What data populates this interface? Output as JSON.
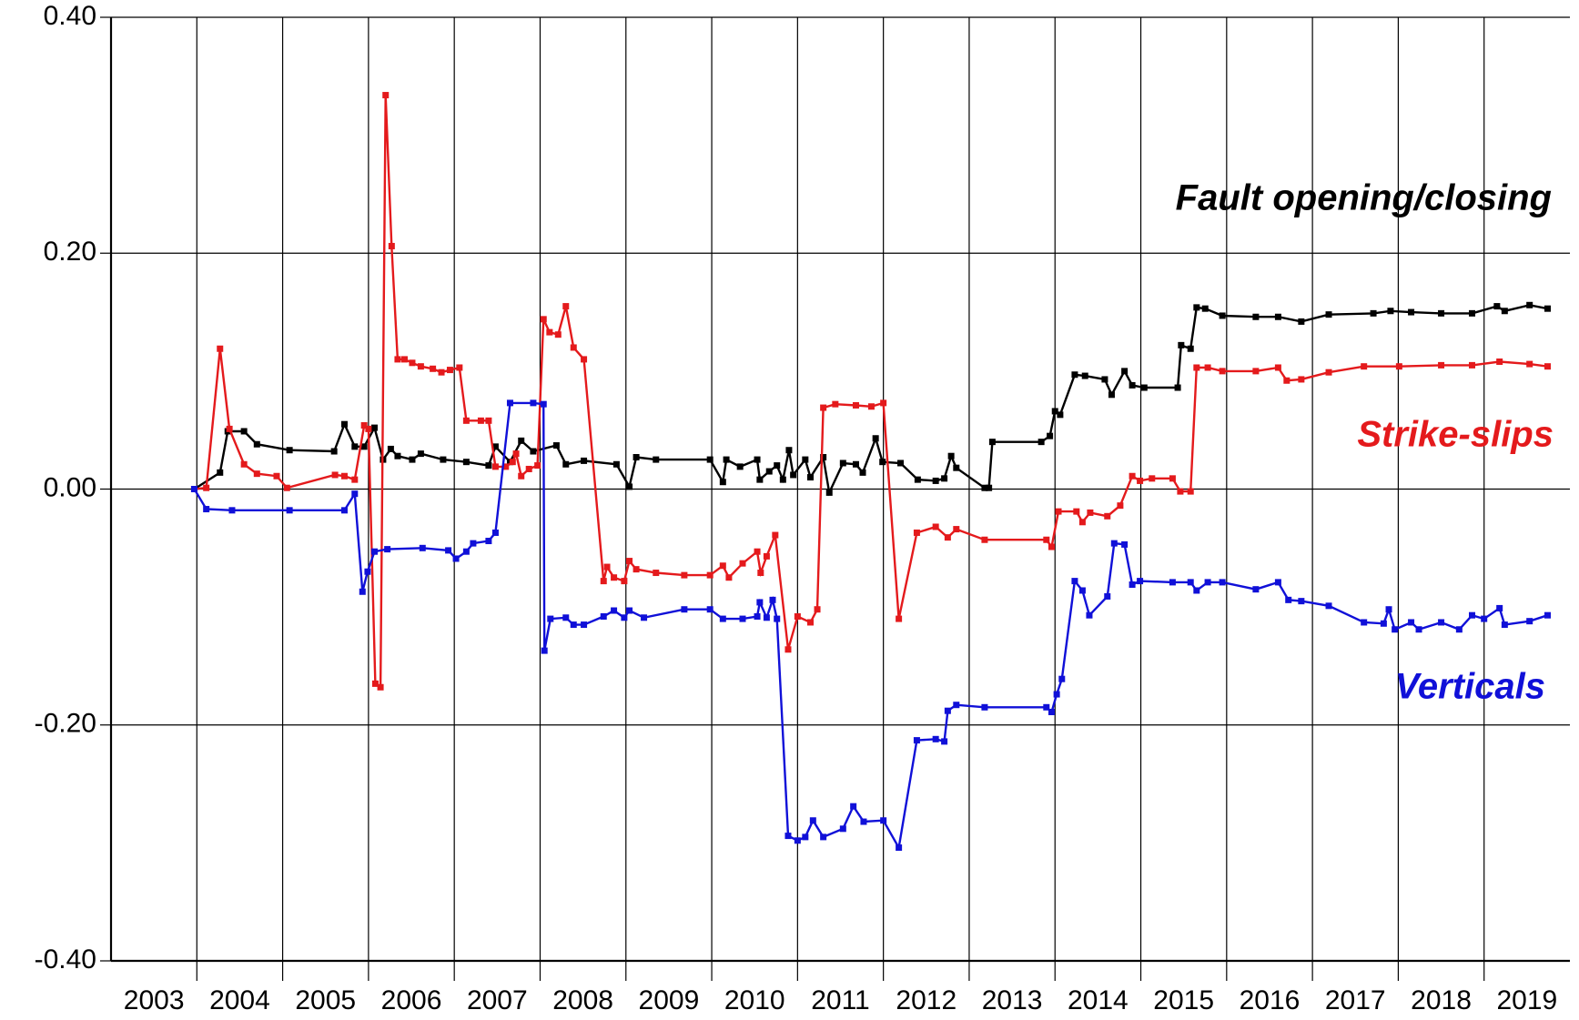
{
  "chart_data": {
    "type": "line",
    "xlim": [
      2003,
      2020
    ],
    "xgrid": [
      2004,
      2005,
      2006,
      2007,
      2008,
      2009,
      2010,
      2011,
      2012,
      2013,
      2014,
      2015,
      2016,
      2017,
      2018,
      2019
    ],
    "xticks": [
      {
        "value": 2003.5,
        "label": "2003"
      },
      {
        "value": 2004.5,
        "label": "2004"
      },
      {
        "value": 2005.5,
        "label": "2005"
      },
      {
        "value": 2006.5,
        "label": "2006"
      },
      {
        "value": 2007.5,
        "label": "2007"
      },
      {
        "value": 2008.5,
        "label": "2008"
      },
      {
        "value": 2009.5,
        "label": "2009"
      },
      {
        "value": 2010.5,
        "label": "2010"
      },
      {
        "value": 2011.5,
        "label": "2011"
      },
      {
        "value": 2012.5,
        "label": "2012"
      },
      {
        "value": 2013.5,
        "label": "2013"
      },
      {
        "value": 2014.5,
        "label": "2014"
      },
      {
        "value": 2015.5,
        "label": "2015"
      },
      {
        "value": 2016.5,
        "label": "2016"
      },
      {
        "value": 2017.5,
        "label": "2017"
      },
      {
        "value": 2018.5,
        "label": "2018"
      },
      {
        "value": 2019.5,
        "label": "2019"
      }
    ],
    "ylim": [
      -0.4,
      0.4
    ],
    "yticks": [
      {
        "value": -0.4,
        "label": "-0.40"
      },
      {
        "value": -0.2,
        "label": "-0.20"
      },
      {
        "value": 0,
        "label": "0.00"
      },
      {
        "value": 0.2,
        "label": "0.20"
      },
      {
        "value": 0.4,
        "label": "0.40"
      }
    ],
    "grid": true,
    "series": [
      {
        "name": "Fault opening/closing",
        "color": "#000000",
        "x": [
          2003.97,
          2004.27,
          2004.36,
          2004.55,
          2004.7,
          2005.08,
          2005.6,
          2005.72,
          2005.84,
          2005.95,
          2006.07,
          2006.17,
          2006.26,
          2006.34,
          2006.51,
          2006.61,
          2006.87,
          2007.14,
          2007.4,
          2007.48,
          2007.65,
          2007.78,
          2007.92,
          2008.19,
          2008.3,
          2008.51,
          2008.89,
          2009.04,
          2009.12,
          2009.35,
          2009.98,
          2010.13,
          2010.17,
          2010.33,
          2010.53,
          2010.56,
          2010.67,
          2010.76,
          2010.83,
          2010.9,
          2010.95,
          2011.09,
          2011.15,
          2011.3,
          2011.37,
          2011.53,
          2011.68,
          2011.76,
          2011.91,
          2011.99,
          2012.2,
          2012.4,
          2012.61,
          2012.71,
          2012.79,
          2012.85,
          2013.18,
          2013.23,
          2013.27,
          2013.84,
          2013.94,
          2014.0,
          2014.06,
          2014.23,
          2014.35,
          2014.58,
          2014.66,
          2014.81,
          2014.9,
          2015.04,
          2015.43,
          2015.47,
          2015.58,
          2015.65,
          2015.75,
          2015.95,
          2016.34,
          2016.6,
          2016.87,
          2017.19,
          2017.71,
          2017.91,
          2018.15,
          2018.5,
          2018.86,
          2019.15,
          2019.24,
          2019.53,
          2019.74
        ],
        "values": [
          0.0,
          0.014,
          0.049,
          0.049,
          0.038,
          0.033,
          0.032,
          0.055,
          0.036,
          0.036,
          0.052,
          0.025,
          0.034,
          0.028,
          0.025,
          0.03,
          0.025,
          0.023,
          0.02,
          0.036,
          0.023,
          0.041,
          0.032,
          0.037,
          0.021,
          0.024,
          0.021,
          0.002,
          0.027,
          0.025,
          0.025,
          0.006,
          0.025,
          0.019,
          0.025,
          0.008,
          0.015,
          0.02,
          0.008,
          0.033,
          0.012,
          0.025,
          0.01,
          0.027,
          -0.003,
          0.022,
          0.021,
          0.014,
          0.043,
          0.023,
          0.022,
          0.008,
          0.007,
          0.009,
          0.028,
          0.018,
          0.001,
          0.001,
          0.04,
          0.04,
          0.045,
          0.066,
          0.063,
          0.097,
          0.096,
          0.093,
          0.08,
          0.1,
          0.088,
          0.086,
          0.086,
          0.122,
          0.119,
          0.154,
          0.153,
          0.147,
          0.146,
          0.146,
          0.142,
          0.148,
          0.149,
          0.151,
          0.15,
          0.149,
          0.149,
          0.155,
          0.151,
          0.156,
          0.153
        ]
      },
      {
        "name": "Strike-slips",
        "color": "#e41a1c",
        "x": [
          2003.97,
          2004.11,
          2004.27,
          2004.38,
          2004.55,
          2004.7,
          2004.93,
          2005.05,
          2005.61,
          2005.72,
          2005.84,
          2005.95,
          2006.0,
          2006.08,
          2006.14,
          2006.2,
          2006.27,
          2006.34,
          2006.42,
          2006.51,
          2006.61,
          2006.75,
          2006.85,
          2006.95,
          2007.06,
          2007.14,
          2007.31,
          2007.4,
          2007.48,
          2007.6,
          2007.68,
          2007.72,
          2007.78,
          2007.87,
          2007.97,
          2008.04,
          2008.11,
          2008.21,
          2008.3,
          2008.39,
          2008.51,
          2008.74,
          2008.78,
          2008.86,
          2008.98,
          2009.04,
          2009.12,
          2009.35,
          2009.68,
          2009.98,
          2010.13,
          2010.2,
          2010.36,
          2010.53,
          2010.57,
          2010.64,
          2010.74,
          2010.89,
          2011.0,
          2011.15,
          2011.23,
          2011.3,
          2011.44,
          2011.68,
          2011.86,
          2012.0,
          2012.18,
          2012.39,
          2012.61,
          2012.75,
          2012.85,
          2013.18,
          2013.9,
          2013.96,
          2014.04,
          2014.25,
          2014.32,
          2014.41,
          2014.61,
          2014.76,
          2014.9,
          2014.99,
          2015.13,
          2015.37,
          2015.46,
          2015.58,
          2015.65,
          2015.78,
          2015.95,
          2016.34,
          2016.6,
          2016.7,
          2016.87,
          2017.19,
          2017.6,
          2018.01,
          2018.5,
          2018.86,
          2019.18,
          2019.53,
          2019.74
        ],
        "values": [
          0.0,
          0.001,
          0.119,
          0.051,
          0.021,
          0.013,
          0.011,
          0.001,
          0.012,
          0.011,
          0.008,
          0.054,
          0.051,
          -0.165,
          -0.168,
          0.334,
          0.206,
          0.11,
          0.11,
          0.107,
          0.104,
          0.102,
          0.099,
          0.101,
          0.103,
          0.058,
          0.058,
          0.058,
          0.019,
          0.019,
          0.023,
          0.03,
          0.011,
          0.017,
          0.02,
          0.144,
          0.133,
          0.131,
          0.155,
          0.12,
          0.11,
          -0.078,
          -0.066,
          -0.075,
          -0.078,
          -0.061,
          -0.068,
          -0.071,
          -0.073,
          -0.073,
          -0.065,
          -0.075,
          -0.063,
          -0.053,
          -0.071,
          -0.057,
          -0.039,
          -0.136,
          -0.108,
          -0.113,
          -0.102,
          0.069,
          0.072,
          0.071,
          0.07,
          0.073,
          -0.11,
          -0.037,
          -0.032,
          -0.041,
          -0.034,
          -0.043,
          -0.043,
          -0.049,
          -0.019,
          -0.019,
          -0.028,
          -0.02,
          -0.023,
          -0.014,
          0.011,
          0.007,
          0.009,
          0.009,
          -0.002,
          -0.002,
          0.103,
          0.103,
          0.1,
          0.1,
          0.103,
          0.092,
          0.093,
          0.099,
          0.104,
          0.104,
          0.105,
          0.105,
          0.108,
          0.106,
          0.104
        ]
      },
      {
        "name": "Verticals",
        "color": "#1010d8",
        "x": [
          2003.97,
          2004.11,
          2004.41,
          2005.08,
          2005.72,
          2005.84,
          2005.93,
          2005.99,
          2006.07,
          2006.22,
          2006.63,
          2006.93,
          2007.02,
          2007.14,
          2007.22,
          2007.4,
          2007.48,
          2007.65,
          2007.92,
          2008.04,
          2008.05,
          2008.12,
          2008.3,
          2008.39,
          2008.51,
          2008.74,
          2008.86,
          2008.98,
          2009.04,
          2009.21,
          2009.68,
          2009.98,
          2010.13,
          2010.36,
          2010.53,
          2010.56,
          2010.64,
          2010.71,
          2010.76,
          2010.89,
          2011.0,
          2011.09,
          2011.18,
          2011.3,
          2011.53,
          2011.65,
          2011.77,
          2012.0,
          2012.18,
          2012.39,
          2012.61,
          2012.71,
          2012.75,
          2012.85,
          2013.18,
          2013.9,
          2013.96,
          2014.02,
          2014.08,
          2014.23,
          2014.32,
          2014.4,
          2014.61,
          2014.69,
          2014.81,
          2014.9,
          2014.99,
          2015.37,
          2015.58,
          2015.65,
          2015.78,
          2015.95,
          2016.34,
          2016.6,
          2016.72,
          2016.87,
          2017.19,
          2017.6,
          2017.83,
          2017.89,
          2017.96,
          2018.15,
          2018.24,
          2018.5,
          2018.71,
          2018.86,
          2019.0,
          2019.18,
          2019.24,
          2019.53,
          2019.74
        ],
        "values": [
          0.0,
          -0.017,
          -0.018,
          -0.018,
          -0.018,
          -0.004,
          -0.087,
          -0.07,
          -0.053,
          -0.051,
          -0.05,
          -0.052,
          -0.059,
          -0.053,
          -0.046,
          -0.044,
          -0.037,
          0.073,
          0.073,
          0.072,
          -0.137,
          -0.11,
          -0.109,
          -0.115,
          -0.115,
          -0.108,
          -0.103,
          -0.109,
          -0.103,
          -0.109,
          -0.102,
          -0.102,
          -0.11,
          -0.11,
          -0.108,
          -0.096,
          -0.109,
          -0.094,
          -0.11,
          -0.294,
          -0.298,
          -0.295,
          -0.281,
          -0.295,
          -0.288,
          -0.269,
          -0.282,
          -0.281,
          -0.304,
          -0.213,
          -0.212,
          -0.214,
          -0.188,
          -0.183,
          -0.185,
          -0.185,
          -0.189,
          -0.174,
          -0.161,
          -0.078,
          -0.086,
          -0.107,
          -0.091,
          -0.046,
          -0.047,
          -0.081,
          -0.078,
          -0.079,
          -0.079,
          -0.086,
          -0.079,
          -0.079,
          -0.085,
          -0.079,
          -0.094,
          -0.095,
          -0.099,
          -0.113,
          -0.114,
          -0.102,
          -0.119,
          -0.113,
          -0.119,
          -0.113,
          -0.119,
          -0.107,
          -0.11,
          -0.101,
          -0.115,
          -0.112,
          -0.107
        ]
      }
    ]
  }
}
